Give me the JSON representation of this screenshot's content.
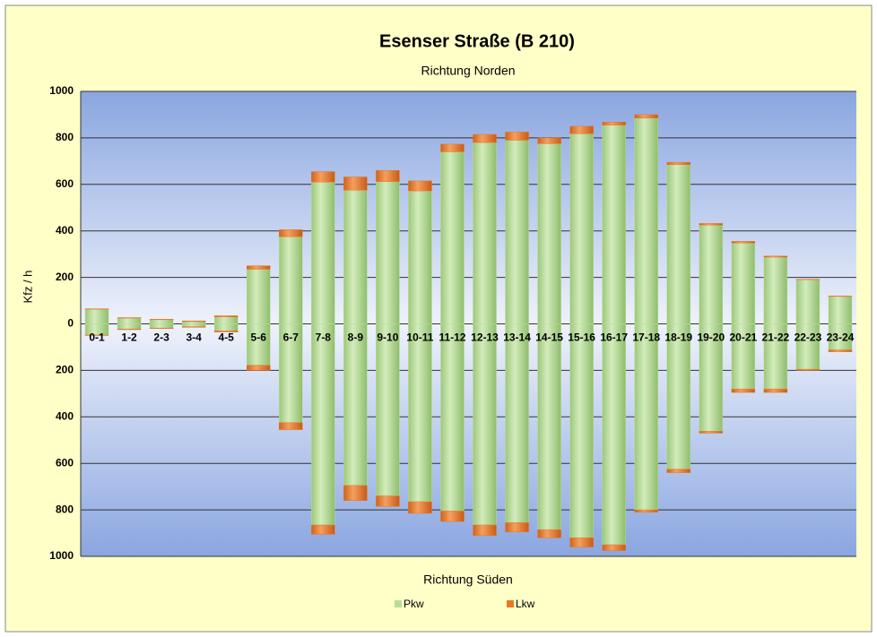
{
  "chart_data": {
    "type": "bar",
    "title": "Esenser Straße (B 210)",
    "subtitle": "Richtung Norden",
    "x_label": "Richtung Süden",
    "y_label": "Kfz / h",
    "categories": [
      "0-1",
      "1-2",
      "2-3",
      "3-4",
      "4-5",
      "5-6",
      "6-7",
      "7-8",
      "8-9",
      "9-10",
      "10-11",
      "11-12",
      "12-13",
      "13-14",
      "14-15",
      "15-16",
      "16-17",
      "17-18",
      "18-19",
      "19-20",
      "20-21",
      "21-22",
      "22-23",
      "23-24"
    ],
    "series": [
      {
        "name": "Pkw",
        "color": "#b9dd96",
        "values": [
          63,
          25,
          18,
          10,
          30,
          235,
          375,
          610,
          575,
          612,
          572,
          740,
          780,
          790,
          775,
          818,
          855,
          885,
          685,
          425,
          348,
          287,
          190,
          118
        ],
        "south_values": [
          -48,
          -22,
          -18,
          -12,
          -30,
          -178,
          -425,
          -865,
          -695,
          -740,
          -765,
          -805,
          -865,
          -855,
          -885,
          -920,
          -950,
          -800,
          -625,
          -462,
          -280,
          -280,
          -195,
          -112
        ]
      },
      {
        "name": "Lkw",
        "color": "#e8782a",
        "values": [
          2,
          2,
          2,
          3,
          5,
          15,
          30,
          45,
          57,
          48,
          43,
          33,
          35,
          35,
          25,
          32,
          13,
          15,
          10,
          7,
          7,
          5,
          2,
          2
        ],
        "south_values": [
          -2,
          -3,
          -2,
          -3,
          -5,
          -22,
          -30,
          -40,
          -65,
          -45,
          -50,
          -45,
          -45,
          -40,
          -35,
          -40,
          -25,
          -10,
          -15,
          -8,
          -15,
          -15,
          -5,
          -8
        ]
      }
    ],
    "ylim": [
      -1000,
      1000
    ],
    "yticks": [
      1000,
      800,
      600,
      400,
      200,
      0,
      {
        "value": -200,
        "label": "200"
      },
      {
        "value": -400,
        "label": "400"
      },
      {
        "value": -600,
        "label": "600"
      },
      {
        "value": -800,
        "label": "800"
      },
      {
        "value": -1000,
        "label": "1000"
      }
    ],
    "grid": true,
    "stacked": true,
    "legend": "bottom"
  }
}
